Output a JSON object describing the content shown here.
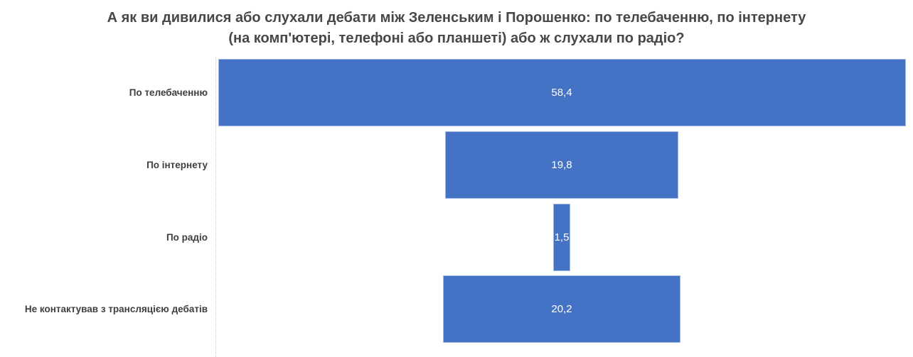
{
  "chart_data": {
    "type": "bar",
    "subtype": "funnel-horizontal-centered",
    "title": "А як ви дивилися або слухали дебати між Зеленським і Порошенко: по телебаченню, по інтернету (на комп'ютері, телефоні або планшеті) або ж слухали по радіо?",
    "title_lines": [
      "А як ви дивилися або слухали дебати між Зеленським і Порошенко: по телебаченню, по інтернету",
      "(на комп'ютері, телефоні або планшеті) або ж слухали по радіо?"
    ],
    "categories": [
      "По телебаченню",
      "По інтернету",
      "По радіо",
      "Не контактував з трансляцією дебатів"
    ],
    "values": [
      58.4,
      19.8,
      1.5,
      20.2
    ],
    "value_labels": [
      "58,4",
      "19,8",
      "1,5",
      "20,2"
    ],
    "xlabel": "",
    "ylabel": "",
    "axis_max": 58.4,
    "grid": "off",
    "legend": "none",
    "bar_color": "#4472C4",
    "value_label_color": "#FFFFFF",
    "category_label_color": "#3F3F3F",
    "title_color": "#474747",
    "axis_line_color": "#C6C6C6"
  }
}
